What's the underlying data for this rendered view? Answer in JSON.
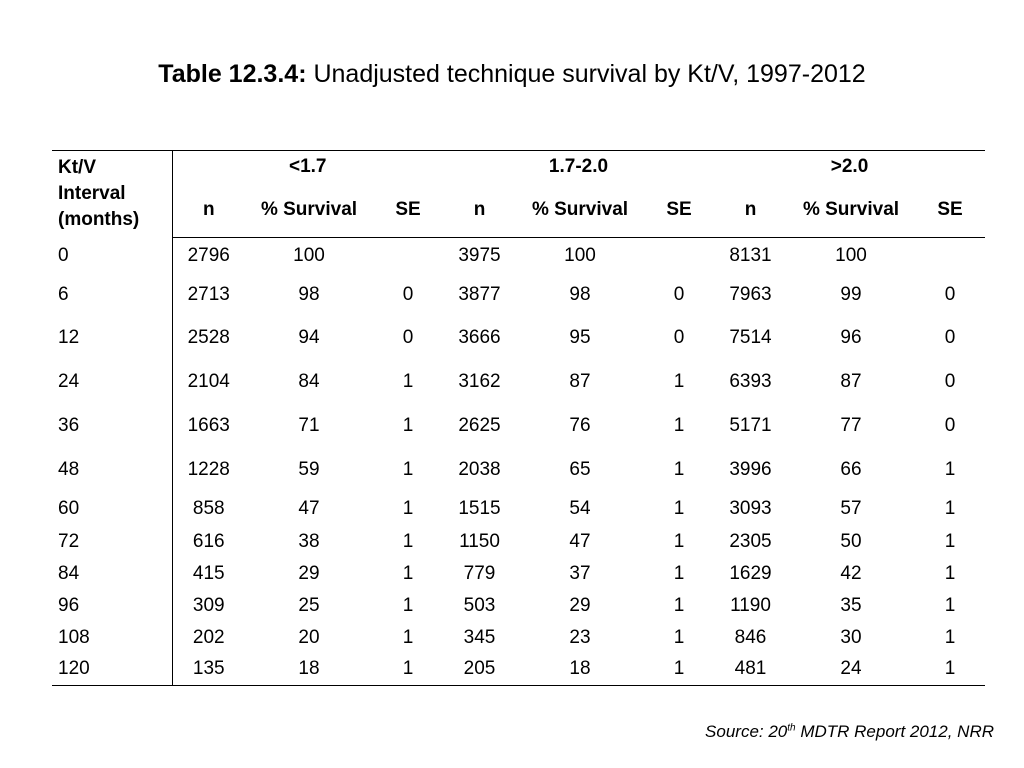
{
  "title": {
    "bold": "Table 12.3.4:",
    "rest": " Unadjusted technique survival by Kt/V, 1997-2012"
  },
  "table": {
    "row_header_label": [
      "Kt/V",
      "Interval",
      "(months)"
    ],
    "groups": [
      "<1.7",
      "1.7-2.0",
      ">2.0"
    ],
    "sub_headers": [
      "n",
      "% Survival",
      "SE"
    ],
    "rows": [
      {
        "interval": "0",
        "cells": [
          "2796",
          "100",
          "",
          "3975",
          "100",
          "",
          "8131",
          "100",
          ""
        ]
      },
      {
        "interval": "6",
        "cells": [
          "2713",
          "98",
          "0",
          "3877",
          "98",
          "0",
          "7963",
          "99",
          "0"
        ]
      },
      {
        "interval": "12",
        "cells": [
          "2528",
          "94",
          "0",
          "3666",
          "95",
          "0",
          "7514",
          "96",
          "0"
        ]
      },
      {
        "interval": "24",
        "cells": [
          "2104",
          "84",
          "1",
          "3162",
          "87",
          "1",
          "6393",
          "87",
          "0"
        ]
      },
      {
        "interval": "36",
        "cells": [
          "1663",
          "71",
          "1",
          "2625",
          "76",
          "1",
          "5171",
          "77",
          "0"
        ]
      },
      {
        "interval": "48",
        "cells": [
          "1228",
          "59",
          "1",
          "2038",
          "65",
          "1",
          "3996",
          "66",
          "1"
        ]
      },
      {
        "interval": "60",
        "cells": [
          "858",
          "47",
          "1",
          "1515",
          "54",
          "1",
          "3093",
          "57",
          "1"
        ]
      },
      {
        "interval": "72",
        "cells": [
          "616",
          "38",
          "1",
          "1150",
          "47",
          "1",
          "2305",
          "50",
          "1"
        ]
      },
      {
        "interval": "84",
        "cells": [
          "415",
          "29",
          "1",
          "779",
          "37",
          "1",
          "1629",
          "42",
          "1"
        ]
      },
      {
        "interval": "96",
        "cells": [
          "309",
          "25",
          "1",
          "503",
          "29",
          "1",
          "1190",
          "35",
          "1"
        ]
      },
      {
        "interval": "108",
        "cells": [
          "202",
          "20",
          "1",
          "345",
          "23",
          "1",
          "846",
          "30",
          "1"
        ]
      },
      {
        "interval": "120",
        "cells": [
          "135",
          "18",
          "1",
          "205",
          "18",
          "1",
          "481",
          "24",
          "1"
        ]
      }
    ]
  },
  "source": {
    "prefix": "Source: 20",
    "sup": "th",
    "suffix": " MDTR Report 2012, NRR"
  }
}
